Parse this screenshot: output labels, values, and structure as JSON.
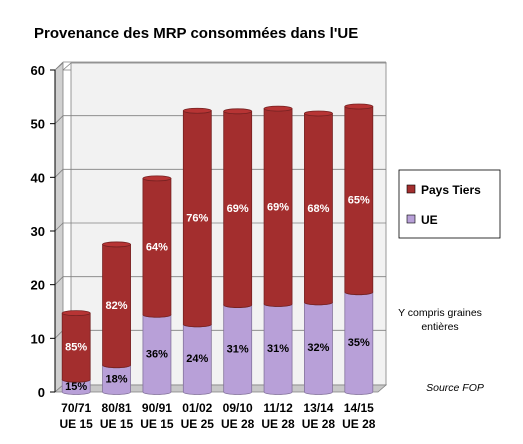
{
  "chart_data": {
    "type": "bar",
    "stacked": true,
    "title": "Provenance des MRP consommées dans l'UE",
    "categories": [
      [
        "70/71",
        "UE 15"
      ],
      [
        "80/81",
        "UE 15"
      ],
      [
        "90/91",
        "UE 15"
      ],
      [
        "01/02",
        "UE 25"
      ],
      [
        "09/10",
        "UE 28"
      ],
      [
        "11/12",
        "UE 28"
      ],
      [
        "13/14",
        "UE 28"
      ],
      [
        "14/15",
        "UE 28"
      ]
    ],
    "series": [
      {
        "name": "UE",
        "color": "#b8a0d8",
        "values": [
          2.3,
          5.0,
          14.4,
          12.6,
          16.2,
          16.4,
          16.7,
          18.6
        ],
        "labels": [
          "15%",
          "18%",
          "36%",
          "24%",
          "31%",
          "31%",
          "32%",
          "35%"
        ]
      },
      {
        "name": "Pays Tiers",
        "color": "#a32e2e",
        "values": [
          12.4,
          22.5,
          25.4,
          39.8,
          36.1,
          36.4,
          35.2,
          34.6
        ],
        "labels": [
          "85%",
          "82%",
          "64%",
          "76%",
          "69%",
          "69%",
          "68%",
          "65%"
        ]
      }
    ],
    "ylim": [
      0,
      60
    ],
    "yticks": [
      0,
      10,
      20,
      30,
      40,
      50,
      60
    ],
    "grid": true,
    "legend_position": "right",
    "legend": [
      {
        "name": "Pays Tiers",
        "color": "#a32e2e"
      },
      {
        "name": "UE",
        "color": "#b8a0d8"
      }
    ],
    "annotations": [
      "Y compris graines",
      "entières"
    ],
    "source": "Source FOP"
  }
}
